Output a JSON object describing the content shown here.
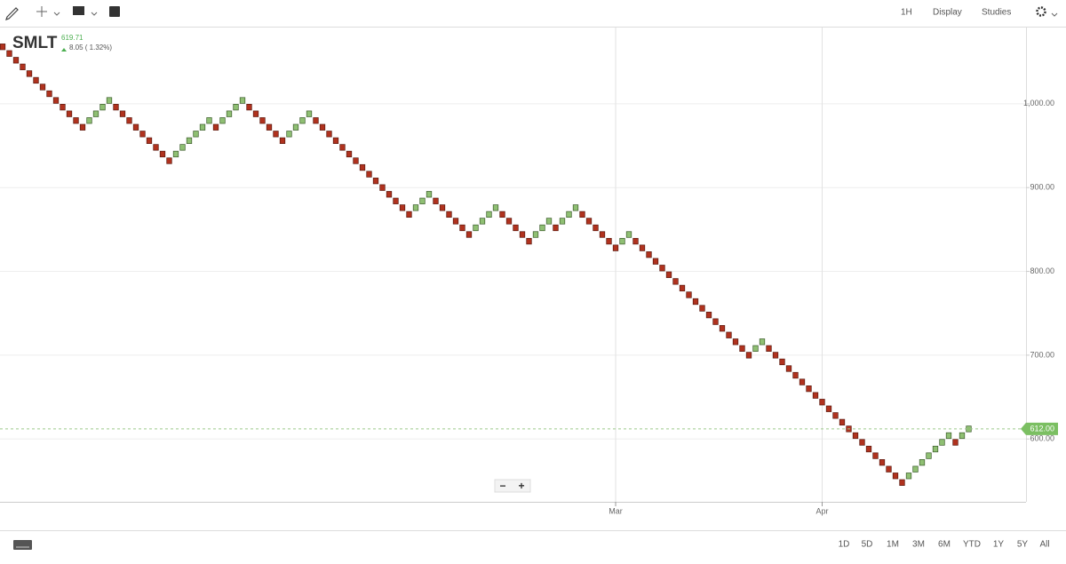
{
  "toolbar": {
    "interval": "1H",
    "display": "Display",
    "studies": "Studies"
  },
  "ranges": [
    "1D",
    "5D",
    "1M",
    "3M",
    "6M",
    "YTD",
    "1Y",
    "5Y",
    "All"
  ],
  "zoom": [
    "−",
    "+"
  ],
  "chart_data": {
    "type": "renko",
    "title": "SMLT",
    "last_price": "619.71",
    "change": "8.05 ( 1.32%)",
    "up_color": "#8fbf73",
    "down_color": "#b0321e",
    "current_price": {
      "value": 612,
      "label": "612.00"
    },
    "ylim": [
      525,
      1091
    ],
    "yticks": [
      {
        "value": 1000,
        "label": "1,000.00"
      },
      {
        "value": 900,
        "label": "900.00"
      },
      {
        "value": 800,
        "label": "800.00"
      },
      {
        "value": 700,
        "label": "700.00"
      },
      {
        "value": 600,
        "label": "600.00"
      }
    ],
    "grid": true,
    "categories": [
      null,
      null,
      null,
      null,
      null,
      null,
      null,
      null,
      null,
      null,
      null,
      null,
      null,
      null,
      null,
      null,
      null,
      null,
      null,
      null,
      null,
      null,
      null,
      null,
      null,
      null,
      null,
      null,
      null,
      null,
      null,
      null,
      null,
      null,
      null,
      null,
      null,
      null,
      null,
      null,
      null,
      null,
      null,
      null,
      null,
      null,
      null,
      null,
      null,
      null,
      null,
      null,
      null,
      null,
      null,
      null,
      null,
      null,
      null,
      null,
      null,
      null,
      null,
      null,
      null,
      null,
      null,
      null,
      null,
      null,
      null,
      null,
      null,
      null,
      null,
      null,
      null,
      null,
      null,
      null,
      null,
      null,
      null,
      null,
      null,
      null,
      null,
      null,
      null,
      null,
      null,
      null,
      "Mar",
      null,
      null,
      null,
      null,
      null,
      null,
      null,
      null,
      null,
      null,
      null,
      null,
      null,
      null,
      null,
      null,
      null,
      null,
      null,
      null,
      null,
      null,
      null,
      null,
      null,
      null,
      null,
      null,
      null,
      null,
      "Apr",
      null,
      null,
      null,
      null,
      null,
      null,
      null,
      null,
      null,
      null,
      null,
      null,
      null,
      null,
      null,
      null,
      null,
      null,
      null,
      null,
      null,
      null
    ],
    "values": [
      1064,
      1056,
      1048,
      1040,
      1032,
      1024,
      1016,
      1008,
      1000,
      992,
      984,
      976,
      968,
      976,
      984,
      992,
      1000,
      992,
      984,
      976,
      968,
      960,
      952,
      944,
      936,
      928,
      936,
      944,
      952,
      960,
      968,
      976,
      968,
      976,
      984,
      992,
      1000,
      992,
      984,
      976,
      968,
      960,
      952,
      960,
      968,
      976,
      984,
      976,
      968,
      960,
      952,
      944,
      936,
      928,
      920,
      912,
      904,
      896,
      888,
      880,
      872,
      864,
      872,
      880,
      888,
      880,
      872,
      864,
      856,
      848,
      840,
      848,
      856,
      864,
      872,
      864,
      856,
      848,
      840,
      832,
      840,
      848,
      856,
      848,
      856,
      864,
      872,
      864,
      856,
      848,
      840,
      832,
      824,
      832,
      840,
      832,
      824,
      816,
      808,
      800,
      792,
      784,
      776,
      768,
      760,
      752,
      744,
      736,
      728,
      720,
      712,
      704,
      696,
      704,
      712,
      704,
      696,
      688,
      680,
      672,
      664,
      656,
      648,
      640,
      632,
      624,
      616,
      608,
      600,
      592,
      584,
      576,
      568,
      560,
      552,
      544,
      552,
      560,
      568,
      576,
      584,
      592,
      600,
      592,
      600,
      608
    ]
  }
}
